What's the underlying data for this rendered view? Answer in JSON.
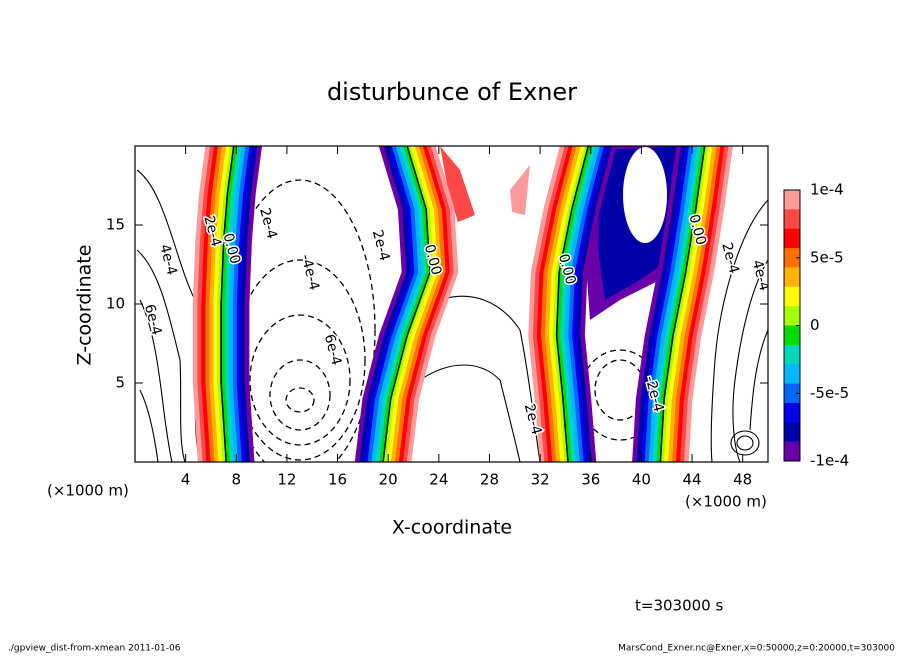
{
  "chart_data": {
    "type": "contour",
    "title": "disturbunce of Exner",
    "x_label": "X-coordinate",
    "y_label": "Z-coordinate",
    "x_unit": "(×1000 m)",
    "x_unit_right": "(×1000 m)",
    "time_label": "t=303000 s",
    "footer_left": "./gpview_dist-from-xmean  2011-01-06",
    "footer_right": "MarsCond_Exner.nc@Exner,x=0:50000,z=0:20000,t=303000",
    "xlim": [
      0,
      50
    ],
    "ylim": [
      0,
      20
    ],
    "xticks": [
      4,
      8,
      12,
      16,
      20,
      24,
      28,
      32,
      36,
      40,
      44,
      48
    ],
    "yticks": [
      5,
      10,
      15
    ],
    "colorbar": {
      "lim": [
        -0.0001,
        0.0001
      ],
      "ticks": [
        {
          "value": 0.0001,
          "label": "1e-4"
        },
        {
          "value": 5e-05,
          "label": "5e-5"
        },
        0,
        {
          "value": -5e-05,
          "label": "-5e-5"
        },
        {
          "value": -0.0001,
          "label": "-1e-4"
        }
      ],
      "colors": [
        "#ff9a9a",
        "#ff4848",
        "#ff0000",
        "#ff7000",
        "#ffb400",
        "#ffff00",
        "#a8ff00",
        "#00dd00",
        "#00d8b8",
        "#00b8ff",
        "#0068ff",
        "#0000e8",
        "#0000a8",
        "#6a00a8"
      ]
    },
    "zero_contours": [
      {
        "positive_side": "left",
        "x": [
          7.2,
          6.8,
          6.8,
          7.0,
          7.3,
          7.8
        ],
        "z": [
          0,
          5,
          10,
          14,
          17,
          20
        ]
      },
      {
        "positive_side": "right",
        "x": [
          19.6,
          20.2,
          21.5,
          23.3,
          23.0,
          21.5
        ],
        "z": [
          0,
          4,
          8,
          12,
          16,
          20
        ]
      },
      {
        "positive_side": "left",
        "x": [
          34.2,
          33.8,
          33.3,
          33.5,
          34.5,
          35.8
        ],
        "z": [
          0,
          4,
          8,
          12,
          16,
          20
        ]
      },
      {
        "positive_side": "right",
        "x": [
          41.5,
          41.8,
          42.5,
          43.5,
          44.3,
          45.0
        ],
        "z": [
          0,
          4,
          8,
          12,
          16,
          20
        ]
      }
    ],
    "contour_labels": [
      {
        "text": "2e-4",
        "x": 6.1,
        "z": 14.6
      },
      {
        "text": "0.00",
        "x": 7.6,
        "z": 13.5
      },
      {
        "text": "2e-4",
        "x": 10.5,
        "z": 15.1
      },
      {
        "text": "-4e-4",
        "x": 13.8,
        "z": 12.0
      },
      {
        "text": "4e-4",
        "x": 2.6,
        "z": 12.8
      },
      {
        "text": "6e-4",
        "x": 1.4,
        "z": 9.0
      },
      {
        "text": "6e-4",
        "x": 15.6,
        "z": 7.1
      },
      {
        "text": "2e-4",
        "x": 19.4,
        "z": 13.7
      },
      {
        "text": "0.00",
        "x": 23.5,
        "z": 12.8
      },
      {
        "text": "0.00",
        "x": 34.1,
        "z": 12.2
      },
      {
        "text": "2e-4",
        "x": 31.4,
        "z": 2.7
      },
      {
        "text": "-2e-4",
        "x": 41.0,
        "z": 4.3
      },
      {
        "text": "0.00",
        "x": 44.4,
        "z": 14.7
      },
      {
        "text": "2e-4",
        "x": 47.0,
        "z": 12.9
      },
      {
        "text": "4e-4",
        "x": 49.4,
        "z": 11.8
      }
    ]
  }
}
